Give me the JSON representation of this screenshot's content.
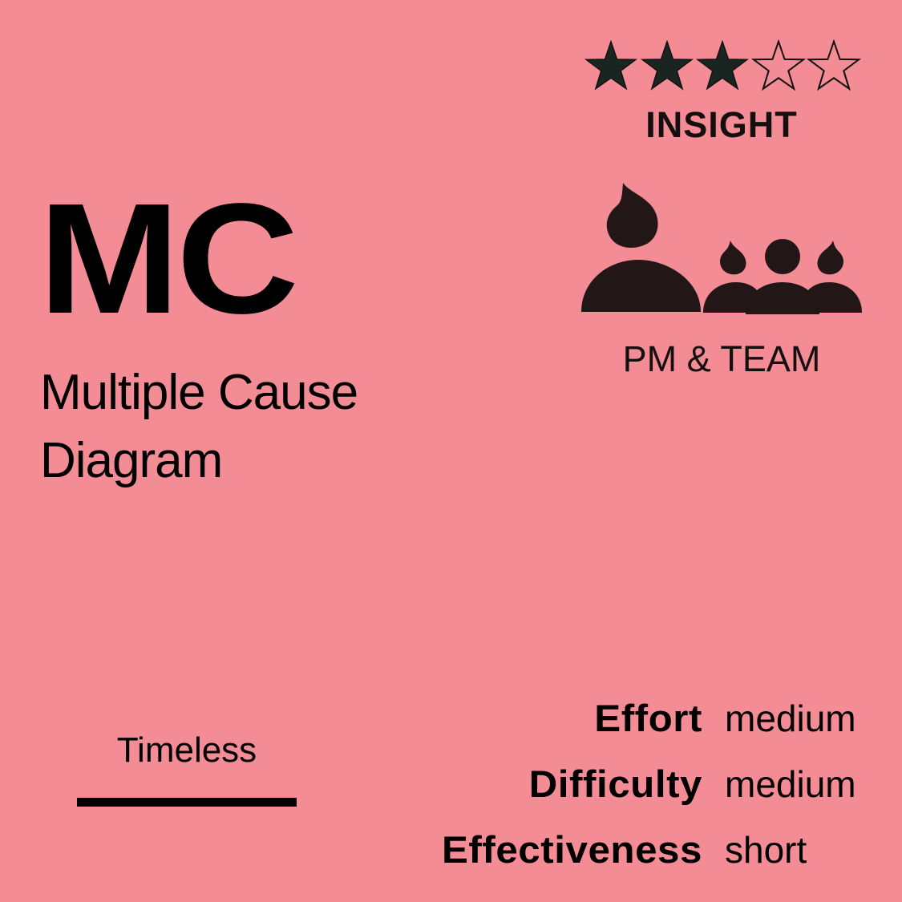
{
  "card": {
    "background": "#F38C95",
    "abbreviation": "MC",
    "name_line1": "Multiple Cause",
    "name_line2": "Diagram"
  },
  "rating": {
    "value": 3,
    "max": 5,
    "filled_color": "#1a2420",
    "icon": "star-icon"
  },
  "category": "INSIGHT",
  "audience": {
    "icon": "team-icon",
    "label": "PM & TEAM"
  },
  "timeframe": {
    "label": "Timeless"
  },
  "metrics": [
    {
      "label": "Effort",
      "value": "medium"
    },
    {
      "label": "Difficulty",
      "value": "medium"
    },
    {
      "label": "Effectiveness",
      "value": "short"
    }
  ]
}
